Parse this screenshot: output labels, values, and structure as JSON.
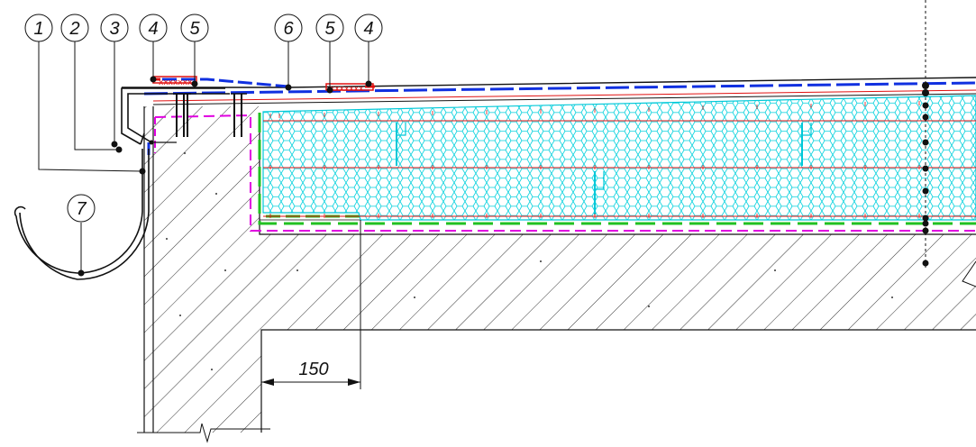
{
  "callouts": {
    "c1": "1",
    "c2": "2",
    "c3": "3",
    "c4a": "4",
    "c5a": "5",
    "c6": "6",
    "c5b": "5",
    "c4b": "4",
    "c7": "7"
  },
  "dimension": {
    "value": "150"
  },
  "colors": {
    "line": "#111111",
    "insulation": "#00d8e0",
    "membrane_blue": "#1030e0",
    "membrane_red": "#e01010",
    "vapor_magenta": "#e000e0",
    "green_layer": "#22c022",
    "hatch": "#222222"
  }
}
